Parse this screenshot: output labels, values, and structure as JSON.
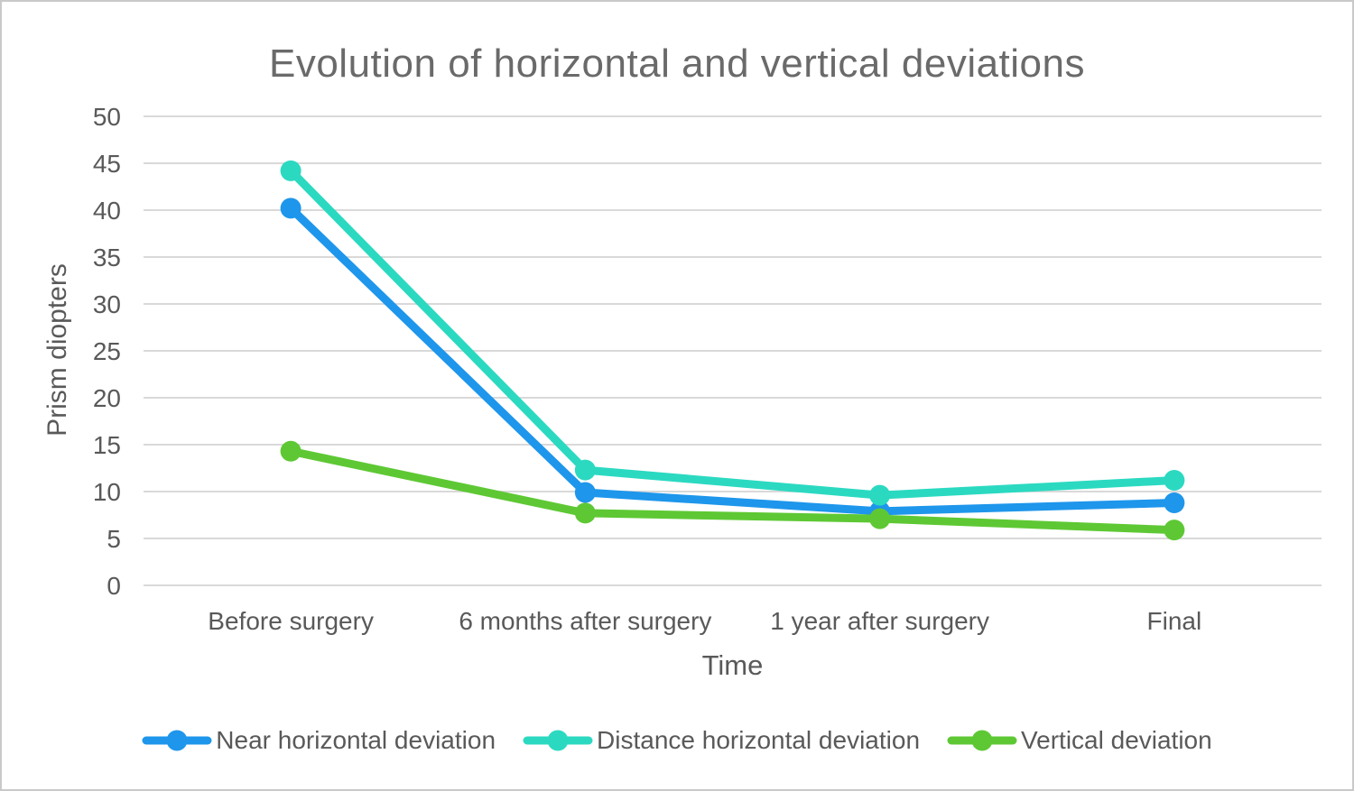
{
  "chart_data": {
    "type": "line",
    "title": "Evolution of horizontal and vertical deviations",
    "xlabel": "Time",
    "ylabel": "Prism diopters",
    "categories": [
      "Before surgery",
      "6 months after surgery",
      "1 year after surgery",
      "Final"
    ],
    "series": [
      {
        "name": "Near horizontal deviation",
        "color": "#1E96EB",
        "values": [
          40.2,
          9.9,
          7.9,
          8.8
        ]
      },
      {
        "name": "Distance horizontal deviation",
        "color": "#2BD9C1",
        "values": [
          44.2,
          12.3,
          9.6,
          11.2
        ]
      },
      {
        "name": "Vertical deviation",
        "color": "#5EC834",
        "values": [
          14.3,
          7.7,
          7.1,
          5.9
        ]
      }
    ],
    "ylim": [
      0,
      50
    ],
    "y_ticks": [
      0,
      5,
      10,
      15,
      20,
      25,
      30,
      35,
      40,
      45,
      50
    ],
    "grid": "horizontal",
    "legend_position": "bottom",
    "colors": {
      "gridline": "#D9D9D9",
      "axis_text": "#595959",
      "title_text": "#6A6A6A",
      "frame_border": "#C9C9C9"
    }
  }
}
